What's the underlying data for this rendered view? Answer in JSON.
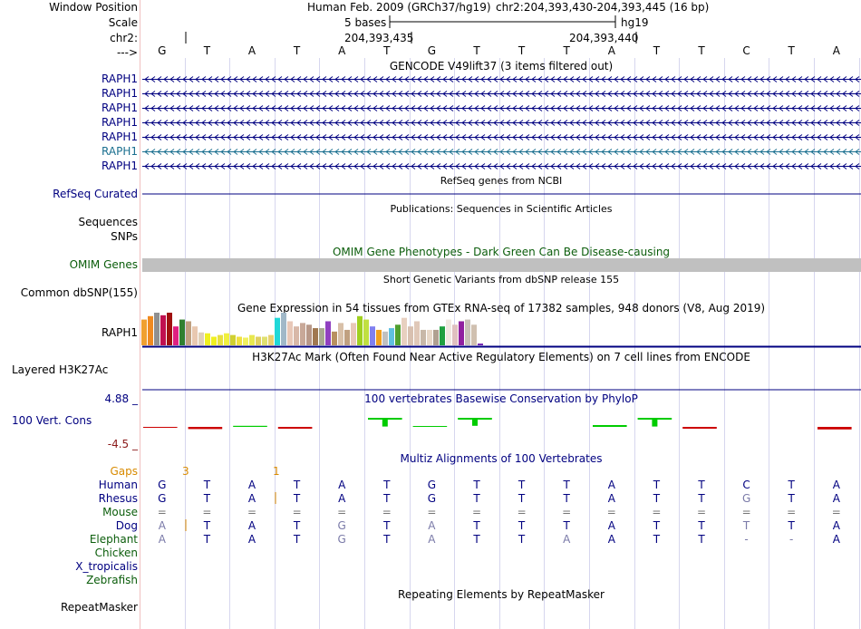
{
  "header": {
    "window_position_label": "Window Position",
    "scale_label": "Scale",
    "chrom_label": "chr2:",
    "strand_label": "--->",
    "assembly_title": "Human Feb. 2009 (GRCh37/hg19)",
    "position": "chr2:204,393,430-204,393,445 (16 bp)",
    "scale_text": "5 bases",
    "scale_db": "hg19",
    "coord_left": "204,393,435",
    "coord_right": "204,393,440"
  },
  "bases": [
    "G",
    "T",
    "A",
    "T",
    "A",
    "T",
    "G",
    "T",
    "T",
    "T",
    "A",
    "T",
    "T",
    "C",
    "T",
    "A"
  ],
  "tracks": {
    "gencode_title": "GENCODE V49lift37 (3 items filtered out)",
    "gencode_items": [
      "RAPH1",
      "RAPH1",
      "RAPH1",
      "RAPH1",
      "RAPH1",
      "RAPH1",
      "RAPH1"
    ],
    "refseq_title": "RefSeq genes from NCBI",
    "refseq_label": "RefSeq Curated",
    "publications_title": "Publications: Sequences in Scientific Articles",
    "sequences_label": "Sequences",
    "snps_label": "SNPs",
    "omim_title": "OMIM Gene Phenotypes - Dark Green Can Be Disease-causing",
    "omim_label": "OMIM Genes",
    "dbsnp_title": "Short Genetic Variants from dbSNP release 155",
    "dbsnp_label": "Common dbSNP(155)",
    "gtex_title": "Gene Expression in 54 tissues from GTEx RNA-seq of 17382 samples, 948 donors (V8, Aug 2019)",
    "gtex_label": "RAPH1",
    "h3k27_title": "H3K27Ac Mark (Often Found Near Active Regulatory Elements) on 7 cell lines from ENCODE",
    "h3k27_label": "Layered H3K27Ac",
    "cons_title": "100 vertebrates Basewise Conservation by PhyloP",
    "cons_label": "100 Vert. Cons",
    "cons_max": "4.88 _",
    "cons_min": "-4.5 _",
    "multiz_title": "Multiz Alignments of 100 Vertebrates",
    "gaps_label": "Gaps",
    "gap_counts": [
      "3",
      "1"
    ],
    "species": [
      "Human",
      "Rhesus",
      "Mouse",
      "Dog",
      "Elephant",
      "Chicken",
      "X_tropicalis",
      "Zebrafish"
    ],
    "align_rows": [
      [
        "G",
        "T",
        "A",
        "T",
        "A",
        "T",
        "G",
        "T",
        "T",
        "T",
        "A",
        "T",
        "T",
        "C",
        "T",
        "A"
      ],
      [
        "G",
        "T",
        "A",
        "T",
        "A",
        "T",
        "G",
        "T",
        "T",
        "T",
        "A",
        "T",
        "T",
        "G",
        "T",
        "A"
      ],
      [
        "=",
        "=",
        "=",
        "=",
        "=",
        "=",
        "=",
        "=",
        "=",
        "=",
        "=",
        "=",
        "=",
        "=",
        "=",
        "="
      ],
      [
        "A",
        "T",
        "A",
        "T",
        "G",
        "T",
        "A",
        "T",
        "T",
        "T",
        "A",
        "T",
        "T",
        "T",
        "T",
        "A"
      ],
      [
        "A",
        "T",
        "A",
        "T",
        "G",
        "T",
        "A",
        "T",
        "T",
        "A",
        "A",
        "T",
        "T",
        "-",
        "-",
        "A"
      ]
    ],
    "repeat_title": "Repeating Elements by RepeatMasker",
    "repeat_label": "RepeatMasker"
  },
  "gtex_values": [
    30,
    34,
    38,
    35,
    38,
    22,
    30,
    28,
    22,
    15,
    14,
    10,
    12,
    14,
    12,
    10,
    9,
    12,
    10,
    10,
    12,
    32,
    38,
    28,
    22,
    26,
    24,
    20,
    20,
    28,
    16,
    26,
    18,
    26,
    34,
    30,
    22,
    18,
    16,
    20,
    24,
    32,
    22,
    28,
    18,
    18,
    18,
    22,
    30,
    24,
    28,
    30,
    24,
    2
  ],
  "gtex_colors": [
    "#f0a030",
    "#f08a20",
    "#909090",
    "#c01050",
    "#a01010",
    "#e02080",
    "#308030",
    "#c0a080",
    "#e8c8b0",
    "#e0d0b8",
    "#f0f020",
    "#f0f020",
    "#e8e040",
    "#f0f040",
    "#d0d030",
    "#f0e040",
    "#f0f060",
    "#e8e850",
    "#e0d060",
    "#e0e070",
    "#e8d070",
    "#20d8d8",
    "#a0b8c8",
    "#e8c8b8",
    "#d8b8a8",
    "#c8a898",
    "#b89888",
    "#a07850",
    "#a8a890",
    "#9040c0",
    "#b89060",
    "#d8c0a8",
    "#c0a080",
    "#e8c8b8",
    "#a0d020",
    "#c0e040",
    "#8080f0",
    "#f0a020",
    "#c0c0c0",
    "#60c0e0",
    "#50a030",
    "#e8d0c0",
    "#d8c0b0",
    "#e0c8b8",
    "#c8b8a8",
    "#e8d8c8",
    "#b0a090",
    "#20a040",
    "#f0e8e0",
    "#e0c0c0",
    "#9020a0",
    "#c8c0b8",
    "#d0c0b0",
    "#7020b0"
  ],
  "cons_marks": [
    {
      "i": 0,
      "v": -0.2
    },
    {
      "i": 1,
      "v": -0.6
    },
    {
      "i": 2,
      "v": 0.3
    },
    {
      "i": 3,
      "v": -0.5
    },
    {
      "i": 5,
      "v": 2.4
    },
    {
      "i": 6,
      "v": 0.1
    },
    {
      "i": 7,
      "v": 2.2
    },
    {
      "i": 10,
      "v": 0.5
    },
    {
      "i": 11,
      "v": 2.4
    },
    {
      "i": 12,
      "v": -0.5
    },
    {
      "i": 15,
      "v": -0.7
    }
  ]
}
